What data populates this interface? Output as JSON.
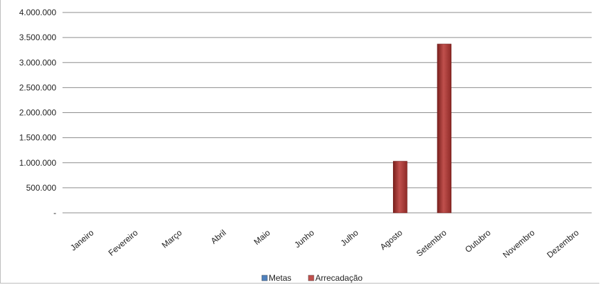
{
  "chart_data": {
    "type": "bar",
    "title": "",
    "xlabel": "",
    "ylabel": "",
    "categories": [
      "Janeiro",
      "Fevereiro",
      "Março",
      "Abril",
      "Maio",
      "Junho",
      "Julho",
      "Agosto",
      "Setembro",
      "Outubro",
      "Novembro",
      "Dezembro"
    ],
    "series": [
      {
        "name": "Metas",
        "color": "#4f81bd",
        "values": [
          0,
          0,
          0,
          0,
          0,
          0,
          0,
          0,
          0,
          0,
          0,
          0
        ]
      },
      {
        "name": "Arrecadação",
        "color": "#c0504d",
        "values": [
          0,
          0,
          0,
          0,
          0,
          0,
          0,
          1030000,
          3370000,
          0,
          0,
          0
        ]
      }
    ],
    "ylim": [
      0,
      4000000
    ],
    "yticks": [
      0,
      500000,
      1000000,
      1500000,
      2000000,
      2500000,
      3000000,
      3500000,
      4000000
    ],
    "ytick_labels": [
      "-",
      "500.000",
      "1.000.000",
      "1.500.000",
      "2.000.000",
      "2.500.000",
      "3.000.000",
      "3.500.000",
      "4.000.000"
    ],
    "grid": true,
    "legend_position": "bottom"
  }
}
